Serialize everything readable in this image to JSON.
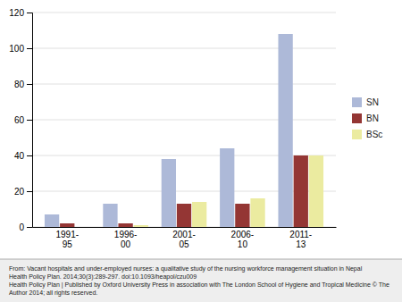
{
  "chart_data": {
    "type": "bar",
    "categories": [
      "1991-\n95",
      "1996-\n00",
      "2001-\n05",
      "2006-\n10",
      "2011-\n13"
    ],
    "series": [
      {
        "name": "SN",
        "color": "#adb9d8",
        "values": [
          7,
          13,
          38,
          44,
          108
        ]
      },
      {
        "name": "BN",
        "color": "#943634",
        "values": [
          2,
          2,
          13,
          13,
          40
        ]
      },
      {
        "name": "BSc",
        "color": "#ebeba0",
        "values": [
          0,
          1,
          14,
          16,
          40
        ]
      }
    ],
    "ylim": [
      0,
      120
    ],
    "yticks": [
      0,
      20,
      40,
      60,
      80,
      100,
      120
    ],
    "grid": true,
    "legend": "right",
    "annotations": [
      "From: Vacant hospitals and under-employed nurses: a qualitative study of the nursing workforce management situation in Nepal",
      "Health Policy Plan. 2014;30(3):289-297. doi:10.1093/heapol/czu009",
      "Health Policy Plan | Published by Oxford University Press in association with The London School of Hygiene and Tropical Medicine © The Author 2014; all rights reserved."
    ]
  }
}
